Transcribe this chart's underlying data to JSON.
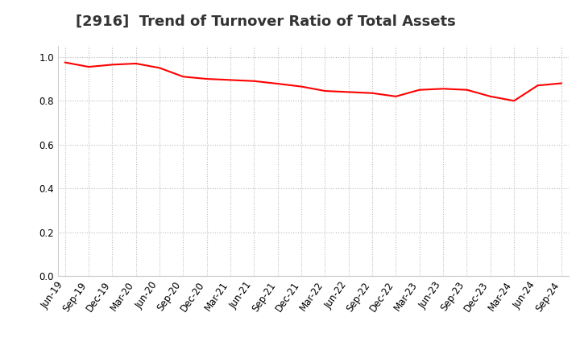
{
  "title": "[2916]  Trend of Turnover Ratio of Total Assets",
  "x_labels": [
    "Jun-19",
    "Sep-19",
    "Dec-19",
    "Mar-20",
    "Jun-20",
    "Sep-20",
    "Dec-20",
    "Mar-21",
    "Jun-21",
    "Sep-21",
    "Dec-21",
    "Mar-22",
    "Jun-22",
    "Sep-22",
    "Dec-22",
    "Mar-23",
    "Jun-23",
    "Sep-23",
    "Dec-23",
    "Mar-24",
    "Jun-24",
    "Sep-24"
  ],
  "values": [
    0.975,
    0.955,
    0.965,
    0.97,
    0.95,
    0.91,
    0.9,
    0.895,
    0.89,
    0.878,
    0.865,
    0.845,
    0.84,
    0.835,
    0.82,
    0.85,
    0.855,
    0.85,
    0.82,
    0.8,
    0.87,
    0.88
  ],
  "line_color": "#ff0000",
  "bg_color": "#ffffff",
  "grid_color": "#bbbbbb",
  "title_color": "#333333",
  "ylim": [
    0.0,
    1.05
  ],
  "yticks": [
    0.0,
    0.2,
    0.4,
    0.6,
    0.8,
    1.0
  ],
  "title_fontsize": 13,
  "tick_fontsize": 8.5
}
